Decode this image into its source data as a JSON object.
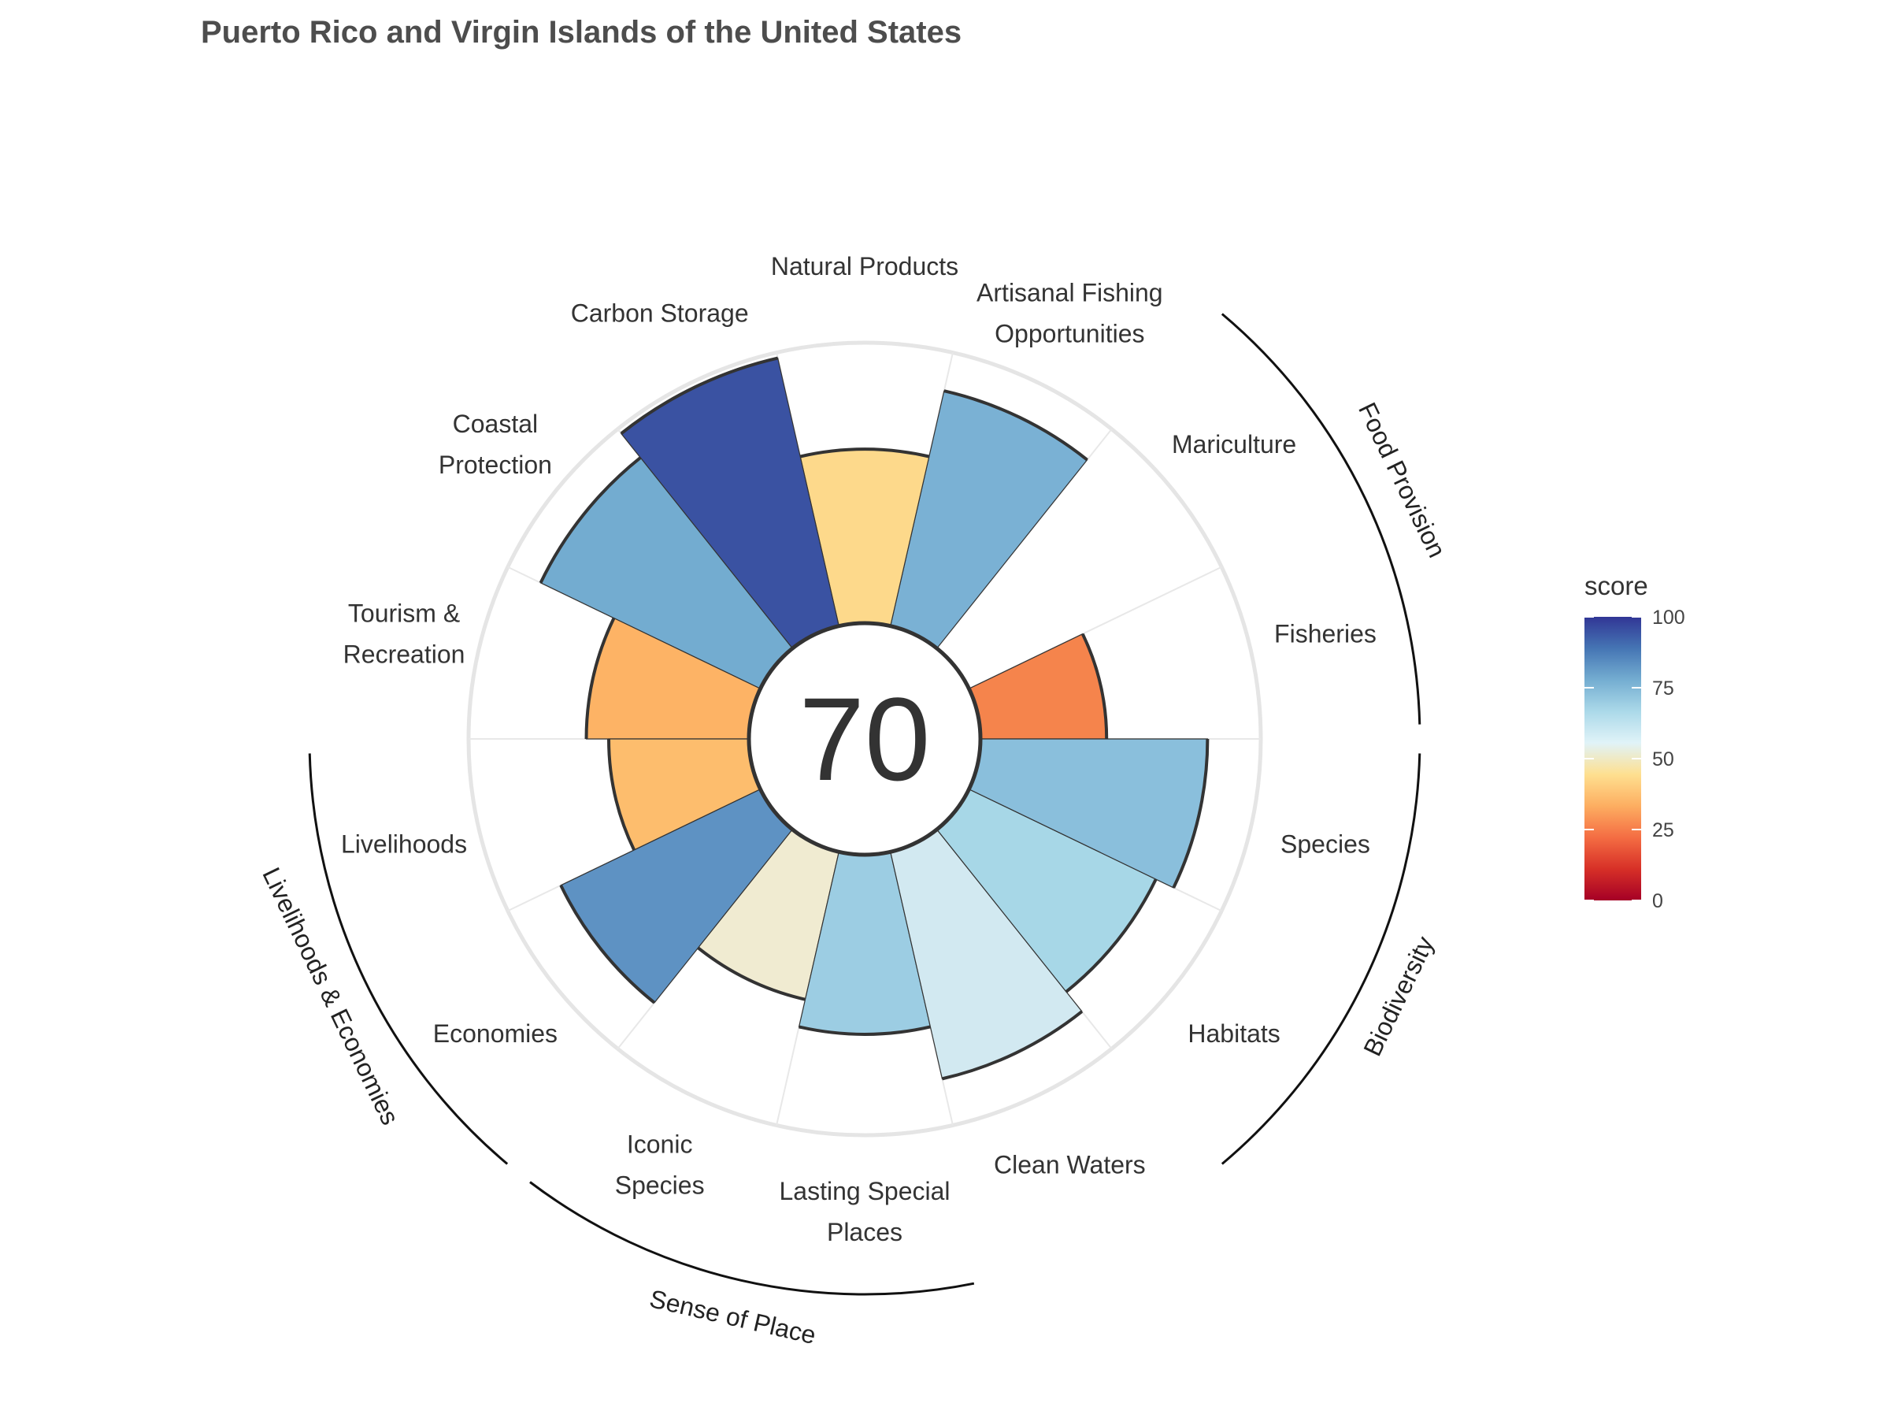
{
  "chart_data": {
    "type": "polar-bar",
    "title": "Puerto Rico and Virgin Islands of the United States",
    "overall_score": "70",
    "ylim": [
      0,
      100
    ],
    "grid": true,
    "legend": {
      "title": "score",
      "position": "right",
      "ticks": [
        "0",
        "25",
        "50",
        "75",
        "100"
      ],
      "scale_colors": [
        "#a50026",
        "#d73027",
        "#f46d43",
        "#fdae61",
        "#fee090",
        "#e0f3f8",
        "#abd9e9",
        "#74add1",
        "#4575b4",
        "#313695"
      ]
    },
    "categories": [
      {
        "label": [
          "Fisheries"
        ],
        "value": 45,
        "color": "#f5844c"
      },
      {
        "label": [
          "Mariculture"
        ],
        "value": 0,
        "color": "#ffffff"
      },
      {
        "label": [
          "Artisanal Fishing",
          "Opportunities"
        ],
        "value": 86,
        "color": "#7ab1d4"
      },
      {
        "label": [
          "Natural Products"
        ],
        "value": 62,
        "color": "#fdd98b"
      },
      {
        "label": [
          "Carbon Storage"
        ],
        "value": 98,
        "color": "#3a52a2"
      },
      {
        "label": [
          "Coastal",
          "Protection"
        ],
        "value": 87,
        "color": "#73acd0"
      },
      {
        "label": [
          "Tourism &",
          "Recreation"
        ],
        "value": 58,
        "color": "#fdb365"
      },
      {
        "label": [
          "Livelihoods"
        ],
        "value": 50,
        "color": "#fdbd6d"
      },
      {
        "label": [
          "Economies"
        ],
        "value": 79,
        "color": "#5e92c3"
      },
      {
        "label": [
          "Iconic",
          "Species"
        ],
        "value": 54,
        "color": "#f0ebd1"
      },
      {
        "label": [
          "Lasting Special",
          "Places"
        ],
        "value": 64,
        "color": "#9ccde3"
      },
      {
        "label": [
          "Clean Waters"
        ],
        "value": 83,
        "color": "#d2e9f1"
      },
      {
        "label": [
          "Habitats"
        ],
        "value": 74,
        "color": "#a7d7e7"
      },
      {
        "label": [
          "Species"
        ],
        "value": 81,
        "color": "#8abfdc"
      }
    ],
    "groups": [
      {
        "name": "Food Provision",
        "members": [
          "Fisheries",
          "Mariculture"
        ]
      },
      {
        "name": "Biodiversity",
        "members": [
          "Habitats",
          "Species"
        ]
      },
      {
        "name": "Sense of Place",
        "members": [
          "Iconic Species",
          "Lasting Special Places"
        ]
      },
      {
        "name": "Livelihoods & Economies",
        "members": [
          "Livelihoods",
          "Economies"
        ]
      }
    ]
  }
}
